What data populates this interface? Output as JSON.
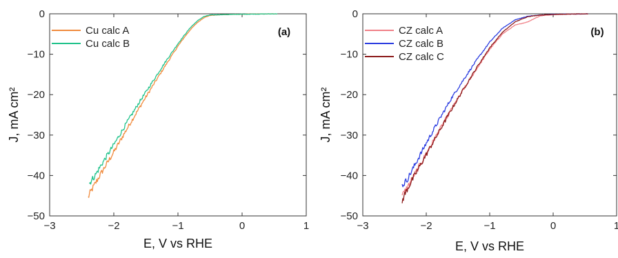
{
  "chart_data": [
    {
      "type": "line",
      "panel_label": "(a)",
      "xlabel": "E, V vs RHE",
      "ylabel": "J, mA cm²",
      "xlim": [
        -3,
        1
      ],
      "ylim": [
        -50,
        0
      ],
      "x_ticks": [
        -3,
        -2,
        -1,
        0,
        1
      ],
      "y_ticks": [
        0,
        -10,
        -20,
        -30,
        -40,
        -50
      ],
      "legend_position": "top-left",
      "grid": false,
      "series": [
        {
          "name": "Cu calc A",
          "color": "#f08a3c",
          "points": [
            [
              -2.4,
              -45.5
            ],
            [
              -2.37,
              -44.3
            ],
            [
              -2.3,
              -42.3
            ],
            [
              -2.2,
              -39.5
            ],
            [
              -2.0,
              -34.2
            ],
            [
              -1.8,
              -28.6
            ],
            [
              -1.6,
              -23.2
            ],
            [
              -1.4,
              -18.0
            ],
            [
              -1.2,
              -12.9
            ],
            [
              -1.0,
              -8.0
            ],
            [
              -0.9,
              -5.8
            ],
            [
              -0.8,
              -3.8
            ],
            [
              -0.7,
              -2.2
            ],
            [
              -0.6,
              -1.0
            ],
            [
              -0.5,
              -0.4
            ],
            [
              -0.3,
              -0.2
            ],
            [
              0.0,
              -0.1
            ],
            [
              0.3,
              -0.05
            ],
            [
              0.55,
              0
            ]
          ]
        },
        {
          "name": "Cu calc B",
          "color": "#1fc28a",
          "points": [
            [
              -2.38,
              -42.0
            ],
            [
              -2.35,
              -41.2
            ],
            [
              -2.3,
              -40.2
            ],
            [
              -2.2,
              -37.5
            ],
            [
              -2.0,
              -32.4
            ],
            [
              -1.8,
              -27.0
            ],
            [
              -1.6,
              -21.8
            ],
            [
              -1.4,
              -16.9
            ],
            [
              -1.2,
              -12.0
            ],
            [
              -1.0,
              -7.4
            ],
            [
              -0.9,
              -5.3
            ],
            [
              -0.8,
              -3.3
            ],
            [
              -0.7,
              -1.8
            ],
            [
              -0.6,
              -0.7
            ],
            [
              -0.5,
              -0.3
            ],
            [
              -0.3,
              -0.2
            ],
            [
              0.0,
              -0.1
            ],
            [
              0.3,
              -0.05
            ],
            [
              0.55,
              0
            ]
          ]
        }
      ]
    },
    {
      "type": "line",
      "panel_label": "(b)",
      "xlabel": "E, V vs RHE",
      "ylabel": "J, mA cm²",
      "xlim": [
        -3,
        1
      ],
      "ylim": [
        -50,
        0
      ],
      "x_ticks": [
        -3,
        -2,
        -1,
        0,
        1
      ],
      "y_ticks": [
        0,
        -10,
        -20,
        -30,
        -40,
        -50
      ],
      "legend_position": "top-left",
      "grid": false,
      "series": [
        {
          "name": "CZ calc A",
          "color": "#f07f86",
          "points": [
            [
              -2.38,
              -45.0
            ],
            [
              -2.3,
              -43.0
            ],
            [
              -2.2,
              -40.2
            ],
            [
              -2.0,
              -34.6
            ],
            [
              -1.8,
              -29.0
            ],
            [
              -1.6,
              -23.5
            ],
            [
              -1.4,
              -18.4
            ],
            [
              -1.2,
              -13.5
            ],
            [
              -1.0,
              -8.8
            ],
            [
              -0.8,
              -5.0
            ],
            [
              -0.6,
              -2.8
            ],
            [
              -0.5,
              -2.4
            ],
            [
              -0.4,
              -2.0
            ],
            [
              -0.3,
              -1.2
            ],
            [
              -0.2,
              -0.5
            ],
            [
              0.0,
              -0.2
            ],
            [
              0.3,
              -0.1
            ],
            [
              0.55,
              0
            ]
          ]
        },
        {
          "name": "CZ calc B",
          "color": "#2a3ce0",
          "points": [
            [
              -2.38,
              -42.5
            ],
            [
              -2.3,
              -41.0
            ],
            [
              -2.2,
              -38.0
            ],
            [
              -2.0,
              -32.0
            ],
            [
              -1.8,
              -26.3
            ],
            [
              -1.6,
              -20.8
            ],
            [
              -1.4,
              -16.0
            ],
            [
              -1.2,
              -11.3
            ],
            [
              -1.0,
              -7.0
            ],
            [
              -0.8,
              -3.6
            ],
            [
              -0.6,
              -1.5
            ],
            [
              -0.4,
              -0.6
            ],
            [
              -0.2,
              -0.3
            ],
            [
              0.0,
              -0.1
            ],
            [
              0.3,
              -0.05
            ],
            [
              0.55,
              0
            ]
          ]
        },
        {
          "name": "CZ calc C",
          "color": "#8b1a1a",
          "points": [
            [
              -2.38,
              -46.5
            ],
            [
              -2.35,
              -45.0
            ],
            [
              -2.3,
              -43.4
            ],
            [
              -2.2,
              -40.5
            ],
            [
              -2.0,
              -34.8
            ],
            [
              -1.8,
              -29.2
            ],
            [
              -1.6,
              -23.6
            ],
            [
              -1.4,
              -18.3
            ],
            [
              -1.2,
              -13.2
            ],
            [
              -1.0,
              -8.4
            ],
            [
              -0.8,
              -4.6
            ],
            [
              -0.6,
              -2.0
            ],
            [
              -0.4,
              -0.7
            ],
            [
              -0.2,
              -0.3
            ],
            [
              0.0,
              -0.15
            ],
            [
              0.3,
              -0.05
            ],
            [
              0.55,
              0
            ]
          ]
        }
      ]
    }
  ]
}
